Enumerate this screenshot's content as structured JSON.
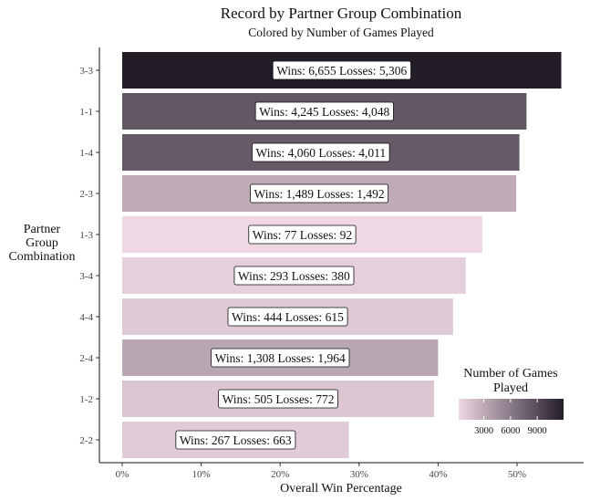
{
  "chart_data": {
    "type": "bar",
    "orientation": "horizontal",
    "title": "Record by Partner Group Combination",
    "subtitle": "Colored by Number of Games Played",
    "xlabel": "Overall Win Percentage",
    "ylabel": "Partner\nGroup\nCombination",
    "xlim": [
      0,
      0.58
    ],
    "x_ticks": [
      {
        "value": 0.0,
        "label": "0%"
      },
      {
        "value": 0.1,
        "label": "10%"
      },
      {
        "value": 0.2,
        "label": "20%"
      },
      {
        "value": 0.3,
        "label": "30%"
      },
      {
        "value": 0.4,
        "label": "40%"
      },
      {
        "value": 0.5,
        "label": "50%"
      }
    ],
    "categories": [
      "3-3",
      "1-1",
      "1-4",
      "2-3",
      "1-3",
      "3-4",
      "4-4",
      "2-4",
      "1-2",
      "2-2"
    ],
    "values": [
      0.556,
      0.512,
      0.503,
      0.499,
      0.456,
      0.435,
      0.419,
      0.4,
      0.395,
      0.287
    ],
    "games_played": [
      11961,
      8293,
      8071,
      2981,
      169,
      673,
      1059,
      3272,
      1277,
      930
    ],
    "bar_labels": [
      "Wins: 6,655 Losses: 5,306",
      "Wins: 4,245 Losses: 4,048",
      "Wins: 4,060 Losses: 4,011",
      "Wins: 1,489 Losses: 1,492",
      "Wins: 77 Losses: 92",
      "Wins: 293 Losses: 380",
      "Wins: 444 Losses: 615",
      "Wins: 1,308 Losses: 1,964",
      "Wins: 505 Losses: 772",
      "Wins: 267 Losses: 663"
    ],
    "grid": false,
    "legend": {
      "title": "Number of Games Played",
      "placement": "bottom-right",
      "range": [
        169,
        11961
      ],
      "ticks": [
        3000,
        6000,
        9000
      ],
      "color_low": "#efd7e4",
      "color_high": "#231d28"
    }
  }
}
